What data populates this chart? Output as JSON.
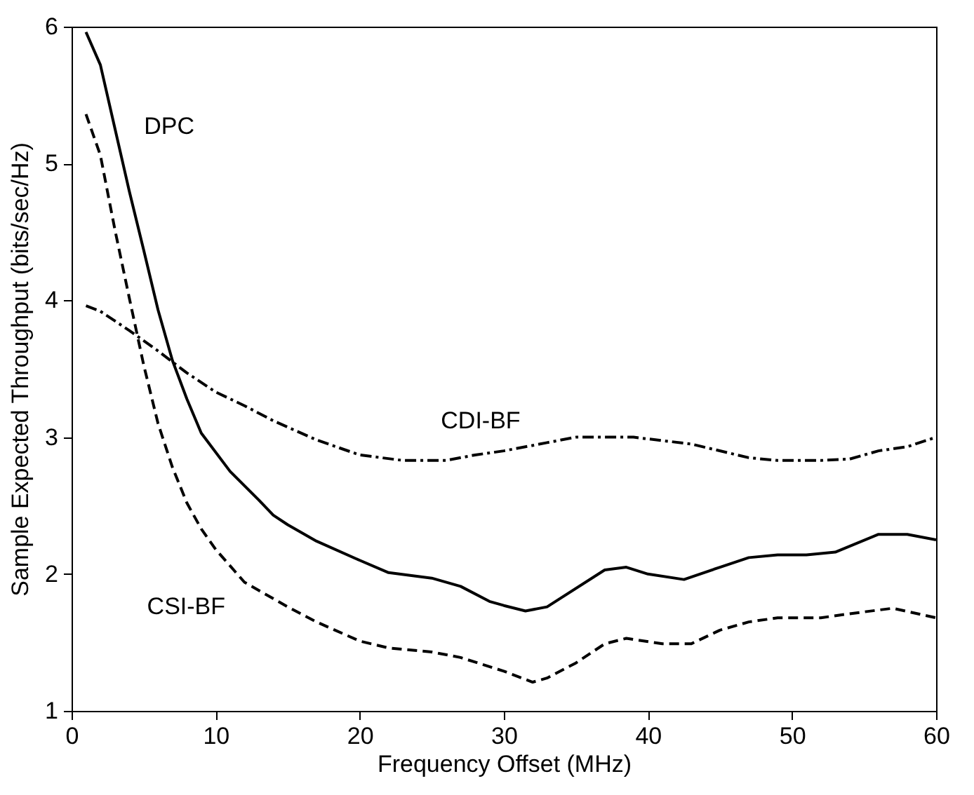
{
  "chart_data": {
    "type": "line",
    "xlabel": "Frequency Offset (MHz)",
    "ylabel": "Sample Expected Throughput (bits/sec/Hz)",
    "xlim": [
      0,
      60
    ],
    "ylim": [
      1,
      6
    ],
    "xticks": [
      0,
      10,
      20,
      30,
      40,
      50,
      60
    ],
    "yticks": [
      1,
      2,
      3,
      4,
      5,
      6
    ],
    "grid": false,
    "marker": "none",
    "series": [
      {
        "name": "DPC",
        "color": "#000000",
        "line_style": "solid",
        "x": [
          1,
          2,
          3,
          4,
          5,
          6,
          7,
          8,
          9,
          11,
          13,
          14,
          15,
          17,
          20,
          22,
          25,
          27,
          29,
          30,
          31.5,
          33,
          37,
          38.5,
          40,
          42.5,
          45,
          47,
          49,
          51,
          53,
          56,
          58,
          60
        ],
        "values": [
          5.96,
          5.72,
          5.26,
          4.8,
          4.37,
          3.93,
          3.56,
          3.28,
          3.03,
          2.75,
          2.54,
          2.43,
          2.36,
          2.24,
          2.1,
          2.01,
          1.97,
          1.91,
          1.8,
          1.77,
          1.73,
          1.76,
          2.03,
          2.05,
          2.0,
          1.96,
          2.05,
          2.12,
          2.14,
          2.14,
          2.16,
          2.29,
          2.29,
          2.25
        ]
      },
      {
        "name": "CDI-BF",
        "color": "#000000",
        "line_style": "dashdot",
        "x": [
          1,
          2,
          4,
          6,
          8,
          10,
          12,
          14,
          17,
          20,
          23,
          26,
          28,
          30,
          33,
          35,
          39,
          43,
          47,
          49,
          52,
          54,
          56,
          58,
          60
        ],
        "values": [
          3.96,
          3.92,
          3.78,
          3.63,
          3.47,
          3.33,
          3.23,
          3.12,
          2.98,
          2.87,
          2.83,
          2.83,
          2.87,
          2.9,
          2.96,
          3.0,
          3.0,
          2.95,
          2.85,
          2.83,
          2.83,
          2.84,
          2.9,
          2.93,
          3.0
        ]
      },
      {
        "name": "CSI-BF",
        "color": "#000000",
        "line_style": "dashed",
        "x": [
          1,
          2,
          3,
          4,
          5,
          6,
          7,
          8,
          9,
          10,
          12,
          15,
          17,
          20,
          22,
          25,
          27,
          30,
          32,
          33,
          35,
          37,
          38.5,
          41,
          43,
          45,
          47,
          49,
          52,
          54,
          57,
          60
        ],
        "values": [
          5.36,
          5.06,
          4.52,
          4.02,
          3.53,
          3.1,
          2.78,
          2.52,
          2.33,
          2.18,
          1.94,
          1.76,
          1.65,
          1.51,
          1.46,
          1.43,
          1.39,
          1.29,
          1.21,
          1.24,
          1.35,
          1.49,
          1.53,
          1.49,
          1.49,
          1.59,
          1.65,
          1.68,
          1.68,
          1.71,
          1.75,
          1.68
        ]
      }
    ]
  }
}
